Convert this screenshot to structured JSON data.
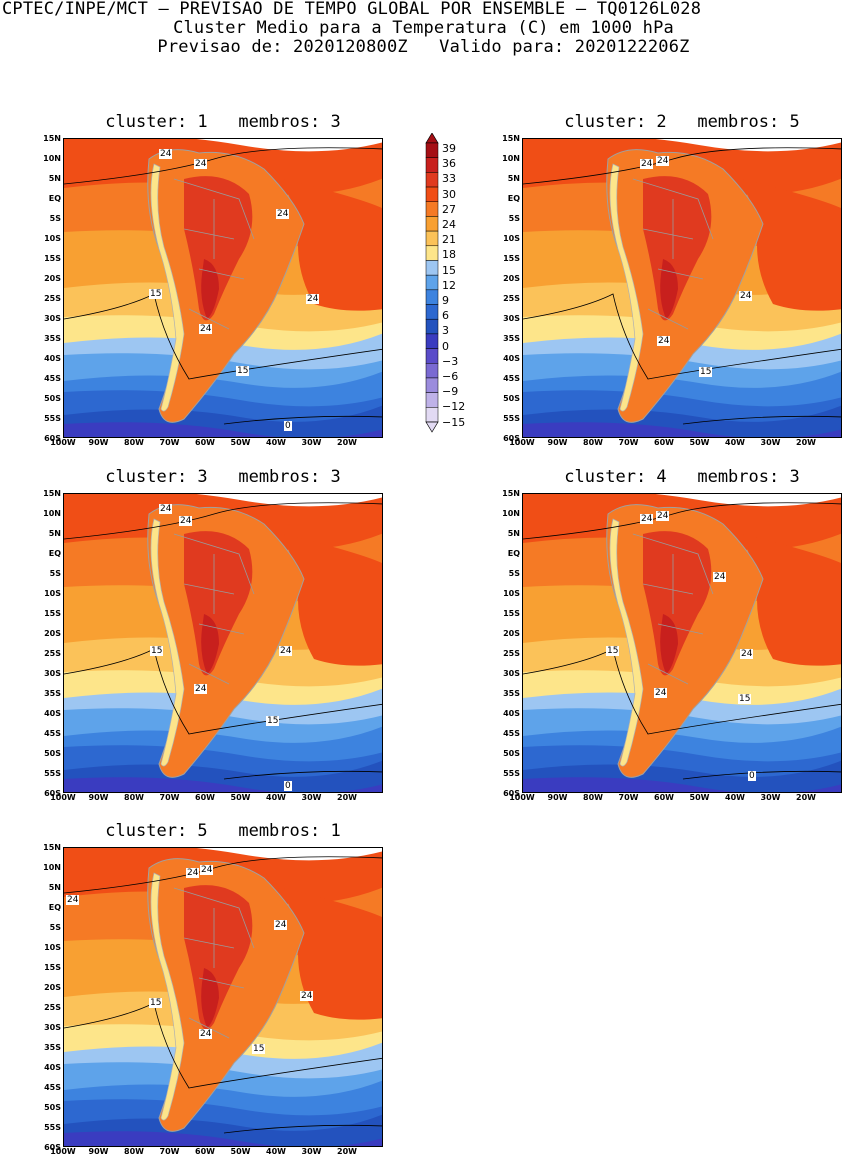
{
  "header": {
    "line1": "CPTEC/INPE/MCT – PREVISAO DE TEMPO GLOBAL POR ENSEMBLE – TQ0126L028",
    "line2": "Cluster Medio para a Temperatura (C) em 1000 hPa",
    "line3": "Previsao de: 2020120800Z   Valido para: 2020122206Z"
  },
  "lat_labels": [
    "15N",
    "10N",
    "5N",
    "EQ",
    "5S",
    "10S",
    "15S",
    "20S",
    "25S",
    "30S",
    "35S",
    "40S",
    "45S",
    "50S",
    "55S",
    "60S"
  ],
  "lon_labels": [
    "100W",
    "90W",
    "80W",
    "70W",
    "60W",
    "50W",
    "40W",
    "30W",
    "20W"
  ],
  "colorbar": {
    "ticks": [
      "39",
      "36",
      "33",
      "30",
      "27",
      "24",
      "21",
      "18",
      "15",
      "12",
      "9",
      "6",
      "3",
      "0",
      "−3",
      "−6",
      "−9",
      "−12",
      "−15"
    ],
    "colors": [
      "#a50f15",
      "#c8201d",
      "#e03a1f",
      "#f04e16",
      "#f57a25",
      "#f8a032",
      "#fbc259",
      "#fde58a",
      "#9dc6f2",
      "#5ea3ea",
      "#3d83df",
      "#2d68d0",
      "#2352be",
      "#3a3cc0",
      "#5a4cc9",
      "#7a6ad2",
      "#9b8cdd",
      "#bfb2e8",
      "#e2daf3"
    ],
    "ramp": [
      "#e2daf3",
      "#bfb2e8",
      "#9b8cdd",
      "#7a6ad2",
      "#5a4cc9",
      "#3a3cc0",
      "#2352be",
      "#2d68d0",
      "#3d83df",
      "#5ea3ea",
      "#9dc6f2",
      "#fde58a",
      "#fbc259",
      "#f8a032",
      "#f57a25",
      "#f04e16",
      "#e03a1f",
      "#c8201d",
      "#a50f15"
    ]
  },
  "panels": [
    {
      "title": "cluster: 1   membros: 3",
      "labels": [
        "24",
        "24",
        "24",
        "24",
        "15",
        "24",
        "15",
        "0"
      ]
    },
    {
      "title": "cluster: 2   membros: 5",
      "labels": [
        "24",
        "24",
        "24",
        "24",
        "15"
      ]
    },
    {
      "title": "cluster: 3   membros: 3",
      "labels": [
        "24",
        "24",
        "24",
        "15",
        "24",
        "15",
        "0"
      ]
    },
    {
      "title": "cluster: 4   membros: 3",
      "labels": [
        "24",
        "24",
        "24",
        "24",
        "15",
        "24",
        "15",
        "0"
      ]
    },
    {
      "title": "cluster: 5   membros: 1",
      "labels": [
        "24",
        "24",
        "24",
        "24",
        "24",
        "15",
        "24",
        "15"
      ]
    }
  ]
}
